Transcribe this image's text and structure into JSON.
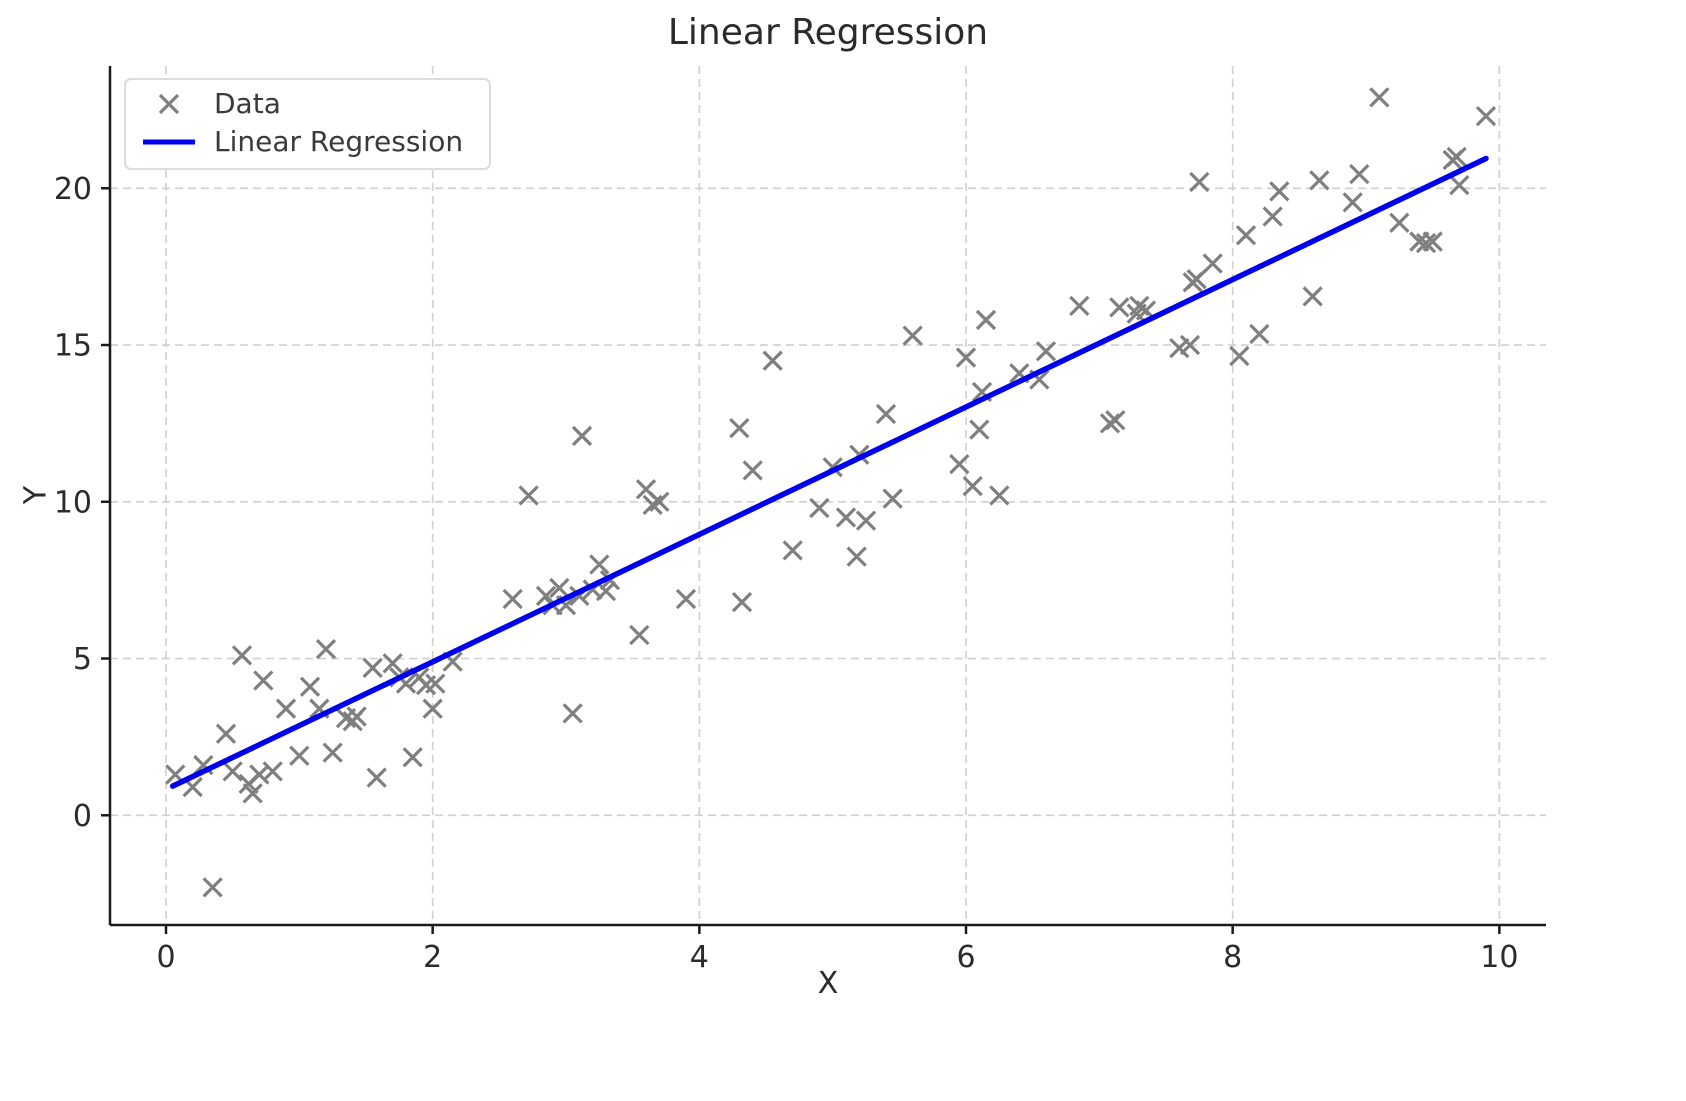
{
  "chart_data": {
    "type": "scatter",
    "title": "Linear Regression",
    "xlabel": "X",
    "ylabel": "Y",
    "xlim": [
      -0.42,
      10.35
    ],
    "ylim": [
      -3.5,
      23.9
    ],
    "x_ticks": [
      0,
      2,
      4,
      6,
      8,
      10
    ],
    "y_ticks": [
      0,
      5,
      10,
      15,
      20
    ],
    "grid": true,
    "grid_style": "dashed",
    "legend": {
      "position": "upper-left",
      "entries": [
        {
          "label": "Data",
          "type": "marker"
        },
        {
          "label": "Linear Regression",
          "type": "line"
        }
      ]
    },
    "colors": {
      "marker": "#7f7f7f",
      "line": "#0000ee",
      "grid": "#cfcfcf",
      "spine": "#1a1a1a",
      "tick_label": "#2b2b2b"
    },
    "series": [
      {
        "name": "Data",
        "type": "scatter",
        "marker": "x",
        "points": [
          [
            0.07,
            1.3
          ],
          [
            0.2,
            0.9
          ],
          [
            0.28,
            1.6
          ],
          [
            0.35,
            -2.3
          ],
          [
            0.45,
            2.6
          ],
          [
            0.5,
            1.4
          ],
          [
            0.57,
            5.1
          ],
          [
            0.62,
            1.0
          ],
          [
            0.65,
            0.7
          ],
          [
            0.7,
            1.3
          ],
          [
            0.73,
            4.3
          ],
          [
            0.8,
            1.4
          ],
          [
            0.9,
            3.4
          ],
          [
            1.0,
            1.9
          ],
          [
            1.08,
            4.1
          ],
          [
            1.15,
            3.4
          ],
          [
            1.2,
            5.3
          ],
          [
            1.25,
            2.0
          ],
          [
            1.35,
            3.1
          ],
          [
            1.4,
            3.0
          ],
          [
            1.43,
            3.15
          ],
          [
            1.55,
            4.7
          ],
          [
            1.58,
            1.2
          ],
          [
            1.7,
            4.85
          ],
          [
            1.75,
            4.4
          ],
          [
            1.8,
            4.2
          ],
          [
            1.85,
            1.85
          ],
          [
            1.9,
            4.4
          ],
          [
            1.95,
            4.15
          ],
          [
            2.0,
            3.4
          ],
          [
            2.02,
            4.2
          ],
          [
            2.15,
            4.9
          ],
          [
            2.6,
            6.9
          ],
          [
            2.72,
            10.2
          ],
          [
            2.85,
            7.0
          ],
          [
            2.9,
            6.7
          ],
          [
            2.95,
            7.25
          ],
          [
            3.0,
            6.7
          ],
          [
            3.05,
            3.25
          ],
          [
            3.1,
            7.0
          ],
          [
            3.12,
            12.1
          ],
          [
            3.2,
            7.2
          ],
          [
            3.25,
            8.0
          ],
          [
            3.3,
            7.15
          ],
          [
            3.33,
            7.5
          ],
          [
            3.55,
            5.75
          ],
          [
            3.6,
            10.4
          ],
          [
            3.65,
            9.9
          ],
          [
            3.7,
            10.0
          ],
          [
            3.9,
            6.9
          ],
          [
            4.3,
            12.35
          ],
          [
            4.32,
            6.8
          ],
          [
            4.4,
            11.0
          ],
          [
            4.55,
            14.5
          ],
          [
            4.7,
            8.45
          ],
          [
            4.9,
            9.8
          ],
          [
            5.0,
            11.1
          ],
          [
            5.1,
            9.5
          ],
          [
            5.18,
            8.25
          ],
          [
            5.2,
            11.5
          ],
          [
            5.25,
            9.4
          ],
          [
            5.4,
            12.8
          ],
          [
            5.45,
            10.1
          ],
          [
            5.6,
            15.3
          ],
          [
            5.95,
            11.2
          ],
          [
            6.0,
            14.6
          ],
          [
            6.05,
            10.5
          ],
          [
            6.1,
            12.3
          ],
          [
            6.12,
            13.5
          ],
          [
            6.15,
            15.8
          ],
          [
            6.25,
            10.2
          ],
          [
            6.4,
            14.1
          ],
          [
            6.55,
            13.9
          ],
          [
            6.6,
            14.8
          ],
          [
            6.85,
            16.25
          ],
          [
            7.08,
            12.5
          ],
          [
            7.12,
            12.6
          ],
          [
            7.15,
            16.2
          ],
          [
            7.28,
            16.0
          ],
          [
            7.3,
            16.25
          ],
          [
            7.35,
            16.1
          ],
          [
            7.6,
            14.9
          ],
          [
            7.68,
            15.0
          ],
          [
            7.7,
            17.0
          ],
          [
            7.73,
            17.1
          ],
          [
            7.75,
            20.2
          ],
          [
            7.85,
            17.6
          ],
          [
            8.05,
            14.65
          ],
          [
            8.1,
            18.5
          ],
          [
            8.2,
            15.35
          ],
          [
            8.3,
            19.1
          ],
          [
            8.35,
            19.9
          ],
          [
            8.6,
            16.55
          ],
          [
            8.65,
            20.25
          ],
          [
            8.9,
            19.55
          ],
          [
            8.95,
            20.45
          ],
          [
            9.1,
            22.9
          ],
          [
            9.25,
            18.9
          ],
          [
            9.4,
            18.3
          ],
          [
            9.45,
            18.25
          ],
          [
            9.5,
            18.3
          ],
          [
            9.65,
            20.9
          ],
          [
            9.68,
            21.0
          ],
          [
            9.7,
            20.1
          ],
          [
            9.9,
            22.3
          ]
        ]
      },
      {
        "name": "Linear Regression",
        "type": "line",
        "points": [
          [
            0.05,
            0.93
          ],
          [
            9.9,
            20.95
          ]
        ]
      }
    ]
  }
}
